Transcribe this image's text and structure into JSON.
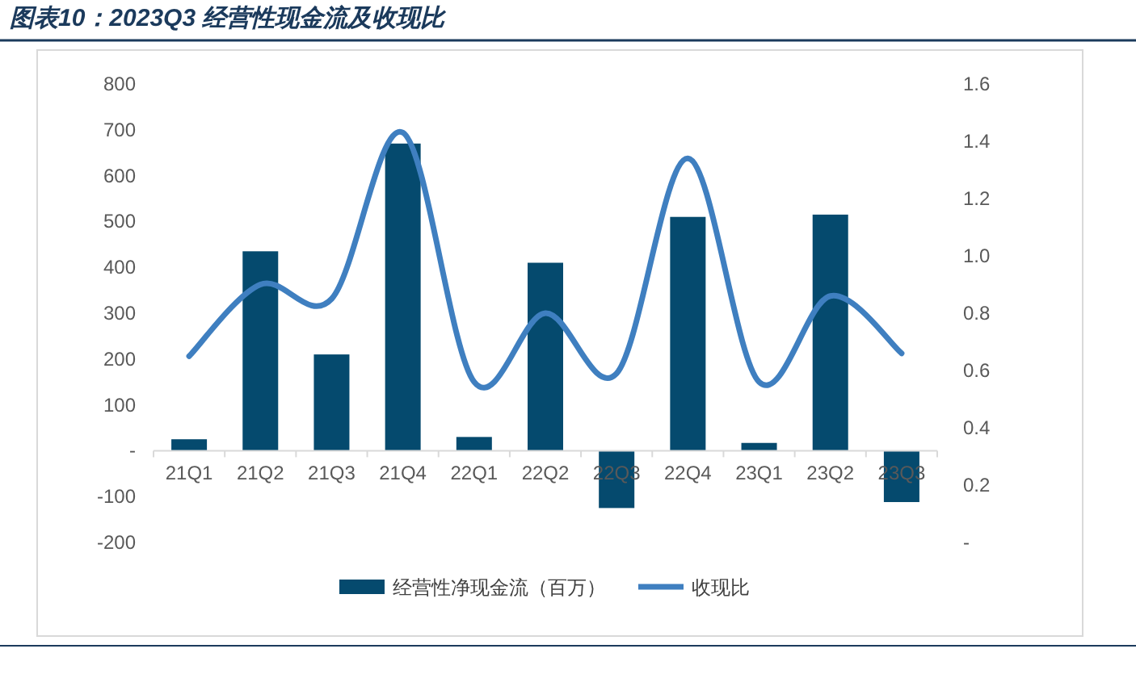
{
  "chart_data": {
    "type": "bar",
    "title": "图表10：2023Q3 经营性现金流及收现比",
    "categories": [
      "21Q1",
      "21Q2",
      "21Q3",
      "21Q4",
      "22Q1",
      "22Q2",
      "22Q3",
      "22Q4",
      "23Q1",
      "23Q2",
      "23Q3"
    ],
    "series": [
      {
        "name": "经营性净现金流（百万）",
        "color": "#054a6e",
        "values": [
          25,
          435,
          210,
          670,
          30,
          410,
          -125,
          510,
          17,
          515,
          -112
        ]
      },
      {
        "name": "收现比",
        "type": "line",
        "axis": "y2",
        "color": "#3f7fc0",
        "values": [
          0.65,
          0.9,
          0.85,
          1.43,
          0.56,
          0.8,
          0.59,
          1.34,
          0.56,
          0.86,
          0.66
        ]
      }
    ],
    "ylim": [
      -200,
      800
    ],
    "yticks": [
      {
        "value": -200,
        "label": "-200"
      },
      {
        "value": -100,
        "label": "-100"
      },
      {
        "value": 0,
        "label": "-"
      },
      100,
      200,
      300,
      400,
      500,
      600,
      700,
      800
    ],
    "y2lim": [
      0,
      1.6
    ],
    "y2ticks": [
      {
        "value": 0,
        "label": "-"
      },
      {
        "value": 0.2,
        "label": "0.2"
      },
      {
        "value": 0.4,
        "label": "0.4"
      },
      {
        "value": 0.6,
        "label": "0.6"
      },
      {
        "value": 0.8,
        "label": "0.8"
      },
      {
        "value": 1.0,
        "label": "1.0"
      },
      {
        "value": 1.2,
        "label": "1.2"
      },
      {
        "value": 1.4,
        "label": "1.4"
      },
      {
        "value": 1.6,
        "label": "1.6"
      }
    ],
    "legend": "bottom",
    "grid": false
  }
}
